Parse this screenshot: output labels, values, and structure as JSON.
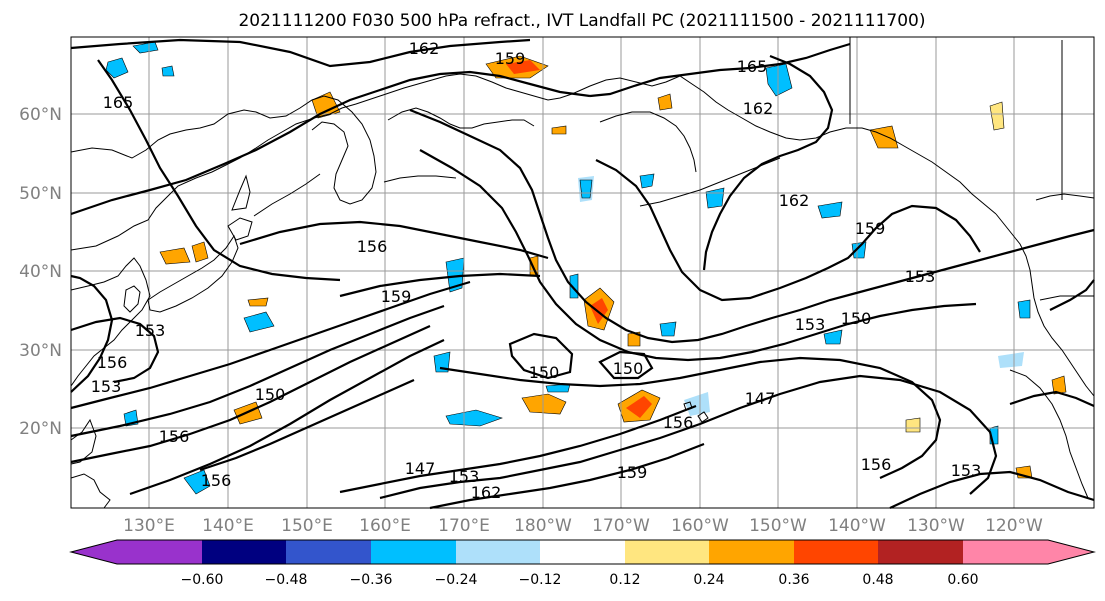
{
  "title": "2021111200 F030 500 hPa refract., IVT Landfall PC (2021111500 - 2021111700)",
  "lat_labels": [
    "60°N",
    "50°N",
    "40°N",
    "30°N",
    "20°N"
  ],
  "lon_labels": [
    "130°E",
    "140°E",
    "150°E",
    "160°E",
    "170°E",
    "180°W",
    "170°W",
    "160°W",
    "150°W",
    "140°W",
    "130°W",
    "120°W"
  ],
  "colorbar": {
    "colors": [
      "#9932cc",
      "#000080",
      "#3355cc",
      "#00bfff",
      "#aee0fa",
      "#ffffff",
      "#ffe680",
      "#ffa500",
      "#ff4500",
      "#b22222",
      "#ff85a8"
    ],
    "tick_labels": [
      "−0.60",
      "−0.48",
      "−0.36",
      "−0.24",
      "−0.12",
      "0.12",
      "0.24",
      "0.36",
      "0.48",
      "0.60"
    ]
  },
  "contour_labels": [
    "162",
    "159",
    "165",
    "165",
    "162",
    "162",
    "159",
    "156",
    "159",
    "153",
    "153",
    "150",
    "150",
    "150",
    "147",
    "156",
    "156",
    "156",
    "153",
    "162",
    "159",
    "156",
    "147",
    "150",
    "153",
    "156",
    "153",
    "153"
  ]
}
